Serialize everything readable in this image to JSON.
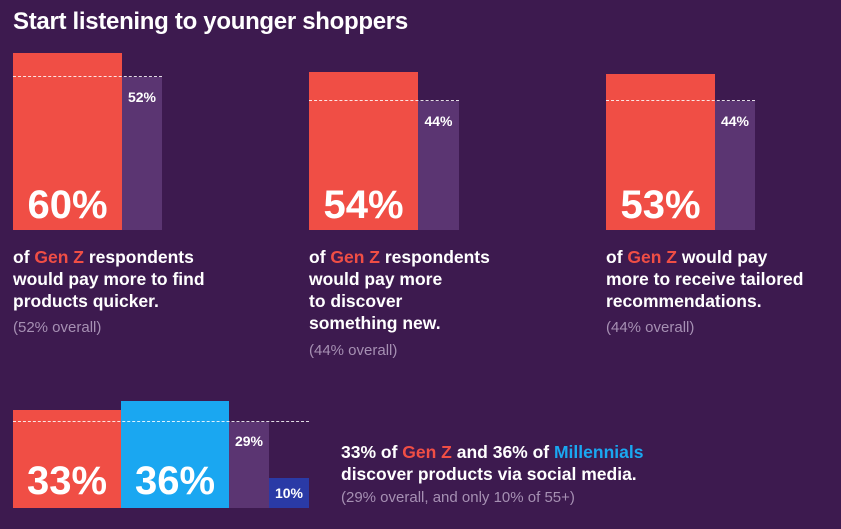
{
  "title": "Start listening to younger shoppers",
  "colors": {
    "background": "#3d1a4f",
    "gen_z": "#f04e45",
    "overall": "#5b3572",
    "millennials": "#1aa7f1",
    "age_55_plus": "#2a3aa6",
    "subtext": "#a690b3"
  },
  "chart_data": [
    {
      "type": "bar",
      "categories": [
        "Gen Z",
        "Overall"
      ],
      "values": [
        60,
        52
      ],
      "labels": [
        "60%",
        "52%"
      ],
      "desc_lines": [
        "of ",
        "Gen Z",
        " respondents",
        "would pay more to find",
        "products quicker."
      ],
      "sub": "(52% overall)"
    },
    {
      "type": "bar",
      "categories": [
        "Gen Z",
        "Overall"
      ],
      "values": [
        54,
        44
      ],
      "labels": [
        "54%",
        "44%"
      ],
      "desc_lines": [
        "of ",
        "Gen Z",
        " respondents",
        "would pay more",
        "to discover",
        "something new."
      ],
      "sub": "(44% overall)"
    },
    {
      "type": "bar",
      "categories": [
        "Gen Z",
        "Overall"
      ],
      "values": [
        53,
        44
      ],
      "labels": [
        "53%",
        "44%"
      ],
      "desc_lines": [
        "of ",
        "Gen Z",
        " would pay",
        "more to receive tailored",
        "recommendations."
      ],
      "sub": "(44% overall)"
    },
    {
      "type": "bar",
      "categories": [
        "Gen Z",
        "Millennials",
        "Overall",
        "55+"
      ],
      "values": [
        33,
        36,
        29,
        10
      ],
      "labels": [
        "33%",
        "36%",
        "29%",
        "10%"
      ],
      "desc_a": "33% of ",
      "desc_genz": "Gen Z",
      "desc_b": " and 36% of ",
      "desc_mill": "Millennials",
      "desc_c": "discover products via social media.",
      "sub": "(29% overall, and only 10% of 55+)"
    }
  ]
}
